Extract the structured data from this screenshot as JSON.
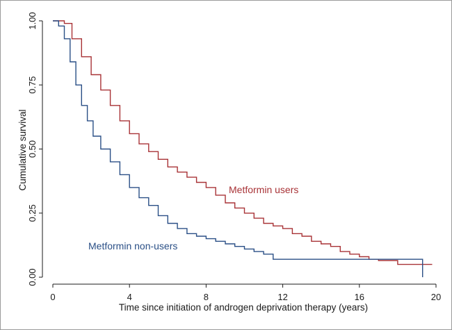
{
  "chart_data": {
    "type": "line",
    "subtype": "kaplan-meier-step",
    "title": "",
    "xlabel": "Time since initiation of androgen deprivation therapy (years)",
    "ylabel": "Cumulative survival",
    "xlim": [
      0,
      20
    ],
    "ylim": [
      0,
      1
    ],
    "x_ticks": [
      0,
      4,
      8,
      12,
      16,
      20
    ],
    "x_tick_labels": [
      "0",
      "4",
      "8",
      "12",
      "16",
      "20"
    ],
    "y_ticks": [
      0,
      0.25,
      0.5,
      0.75,
      1
    ],
    "y_tick_labels": [
      "0.00",
      "0.25",
      "0.50",
      "0.75",
      "1.00"
    ],
    "grid": false,
    "legend": "none (series labels placed inline on the plot)",
    "series": [
      {
        "name": "Metformin users",
        "color": "#a83236",
        "x": [
          0,
          0.6,
          1,
          1.5,
          2,
          2.5,
          3,
          3.5,
          4,
          4.5,
          5,
          5.5,
          6,
          6.5,
          7,
          7.5,
          8,
          8.5,
          9,
          9.5,
          10,
          10.5,
          11,
          11.5,
          12,
          12.5,
          13,
          13.5,
          14,
          14.5,
          15,
          15.5,
          16,
          16.5,
          17,
          17.5,
          18,
          19,
          19.8
        ],
        "y": [
          1,
          0.99,
          0.93,
          0.86,
          0.79,
          0.73,
          0.67,
          0.61,
          0.56,
          0.52,
          0.49,
          0.46,
          0.43,
          0.41,
          0.39,
          0.37,
          0.35,
          0.32,
          0.29,
          0.27,
          0.25,
          0.23,
          0.21,
          0.2,
          0.19,
          0.17,
          0.16,
          0.14,
          0.13,
          0.12,
          0.1,
          0.09,
          0.08,
          0.07,
          0.065,
          0.065,
          0.05,
          0.05,
          0.05
        ]
      },
      {
        "name": "Metformin non-users",
        "color": "#2a4f86",
        "x": [
          0,
          0.3,
          0.6,
          0.9,
          1.2,
          1.5,
          1.8,
          2.1,
          2.5,
          3,
          3.5,
          4,
          4.5,
          5,
          5.5,
          6,
          6.5,
          7,
          7.5,
          8,
          8.5,
          9,
          9.5,
          10,
          10.5,
          11,
          11.5,
          12,
          14,
          16,
          19.3,
          19.3
        ],
        "y": [
          1,
          0.98,
          0.93,
          0.84,
          0.75,
          0.67,
          0.61,
          0.55,
          0.5,
          0.45,
          0.4,
          0.35,
          0.31,
          0.28,
          0.24,
          0.21,
          0.19,
          0.17,
          0.16,
          0.15,
          0.14,
          0.13,
          0.12,
          0.11,
          0.1,
          0.09,
          0.07,
          0.07,
          0.07,
          0.07,
          0.07,
          0.0
        ]
      }
    ]
  }
}
